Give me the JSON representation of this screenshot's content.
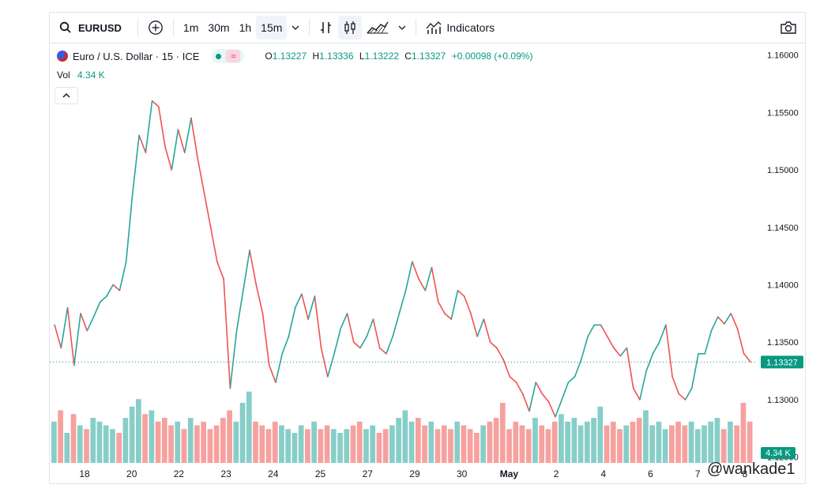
{
  "toolbar": {
    "symbol": "EURUSD",
    "intervals": [
      "1m",
      "30m",
      "1h",
      "15m"
    ],
    "active_interval": "15m",
    "indicators_label": "Indicators"
  },
  "legend": {
    "title": "Euro / U.S. Dollar · 15 · ICE",
    "open_label": "O",
    "open": "1.13227",
    "high_label": "H",
    "high": "1.13336",
    "low_label": "L",
    "low": "1.13222",
    "close_label": "C",
    "close": "1.13327",
    "change": "+0.00098 (+0.09%)",
    "vol_label": "Vol",
    "vol_value": "4.34 K"
  },
  "watermark": "@wankade1",
  "colors": {
    "up": "#26a69a",
    "down": "#ef5350",
    "text": "#131722",
    "price_tag": "#089981"
  },
  "chart_data": {
    "type": "line",
    "xlabel": "",
    "ylabel": "",
    "ylim": [
      1.1245,
      1.161
    ],
    "y_ticks": [
      "1.16000",
      "1.15500",
      "1.15000",
      "1.14500",
      "1.14000",
      "1.13500",
      "1.13000",
      "1.12500"
    ],
    "y_tick_values": [
      1.16,
      1.155,
      1.15,
      1.145,
      1.14,
      1.135,
      1.13,
      1.125
    ],
    "x_ticks": [
      "18",
      "20",
      "22",
      "23",
      "24",
      "25",
      "27",
      "29",
      "30",
      "May",
      "2",
      "4",
      "6",
      "7",
      "8"
    ],
    "last_price": "1.13327",
    "last_volume": "4.34 K",
    "series": [
      {
        "values": [
          1.1365,
          1.1345,
          1.138,
          1.133,
          1.1375,
          1.136,
          1.1372,
          1.1385,
          1.139,
          1.14,
          1.1395,
          1.142,
          1.148,
          1.153,
          1.1515,
          1.156,
          1.1555,
          1.152,
          1.15,
          1.1535,
          1.1515,
          1.1545,
          1.151,
          1.148,
          1.145,
          1.142,
          1.1405,
          1.131,
          1.136,
          1.1395,
          1.143,
          1.14,
          1.1375,
          1.133,
          1.1315,
          1.134,
          1.1355,
          1.138,
          1.1392,
          1.137,
          1.139,
          1.1345,
          1.132,
          1.134,
          1.1362,
          1.1375,
          1.135,
          1.1345,
          1.1355,
          1.137,
          1.1345,
          1.134,
          1.1355,
          1.1375,
          1.1395,
          1.142,
          1.1405,
          1.1395,
          1.1415,
          1.1385,
          1.1375,
          1.137,
          1.1395,
          1.139,
          1.1375,
          1.1355,
          1.137,
          1.135,
          1.1345,
          1.1335,
          1.132,
          1.1315,
          1.1305,
          1.129,
          1.1315,
          1.1305,
          1.1298,
          1.1285,
          1.13,
          1.1315,
          1.132,
          1.1335,
          1.1355,
          1.1365,
          1.1365,
          1.1355,
          1.1345,
          1.1338,
          1.1345,
          1.131,
          1.13,
          1.1325,
          1.134,
          1.135,
          1.1365,
          1.132,
          1.1305,
          1.13,
          1.131,
          1.134,
          1.134,
          1.136,
          1.1372,
          1.1366,
          1.1375,
          1.1362,
          1.134,
          1.1333
        ]
      }
    ],
    "volume": [
      0.55,
      0.7,
      0.4,
      0.65,
      0.5,
      0.45,
      0.6,
      0.55,
      0.5,
      0.45,
      0.4,
      0.6,
      0.75,
      0.85,
      0.65,
      0.7,
      0.55,
      0.6,
      0.5,
      0.55,
      0.45,
      0.6,
      0.5,
      0.55,
      0.45,
      0.5,
      0.6,
      0.7,
      0.55,
      0.8,
      0.95,
      0.55,
      0.5,
      0.45,
      0.55,
      0.5,
      0.45,
      0.4,
      0.5,
      0.45,
      0.55,
      0.45,
      0.5,
      0.45,
      0.4,
      0.45,
      0.5,
      0.55,
      0.45,
      0.5,
      0.4,
      0.45,
      0.5,
      0.6,
      0.7,
      0.55,
      0.6,
      0.5,
      0.55,
      0.45,
      0.5,
      0.45,
      0.55,
      0.5,
      0.45,
      0.4,
      0.5,
      0.55,
      0.6,
      0.8,
      0.45,
      0.55,
      0.5,
      0.45,
      0.6,
      0.5,
      0.45,
      0.55,
      0.65,
      0.55,
      0.6,
      0.5,
      0.55,
      0.6,
      0.75,
      0.5,
      0.55,
      0.45,
      0.5,
      0.55,
      0.6,
      0.7,
      0.5,
      0.55,
      0.45,
      0.5,
      0.55,
      0.5,
      0.55,
      0.45,
      0.5,
      0.55,
      0.6,
      0.45,
      0.55,
      0.5,
      0.8,
      0.55
    ]
  }
}
